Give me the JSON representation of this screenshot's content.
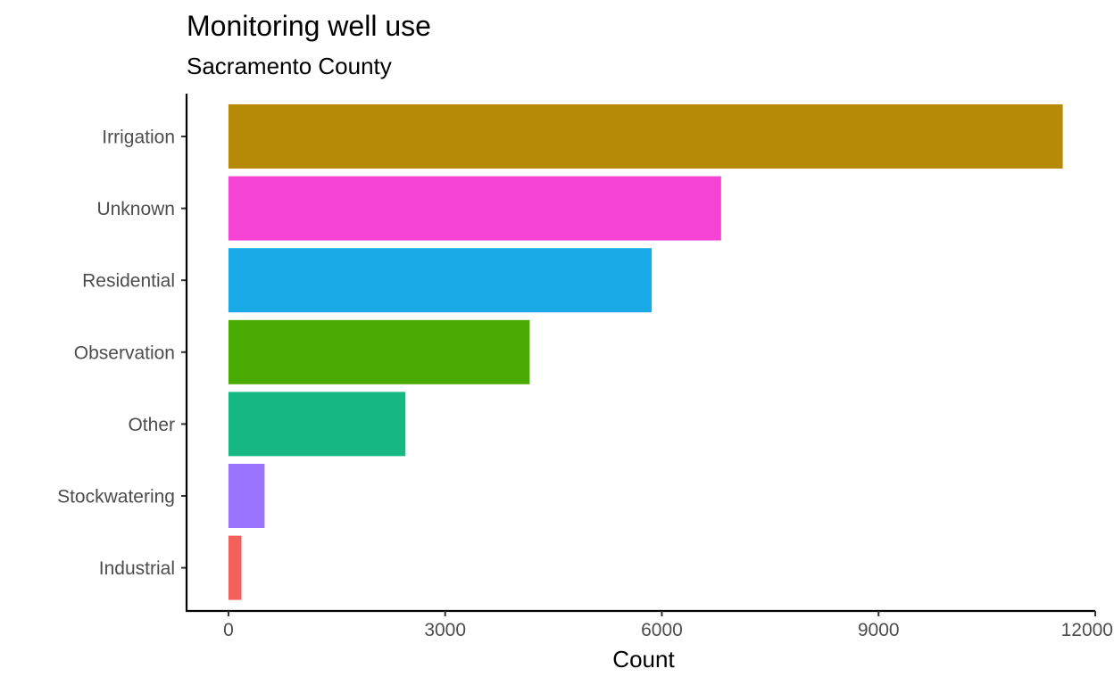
{
  "chart_data": {
    "type": "bar",
    "orientation": "horizontal",
    "title": "Monitoring well use",
    "subtitle": "Sacramento County",
    "xlabel": "Count",
    "ylabel": "",
    "categories": [
      "Irrigation",
      "Unknown",
      "Residential",
      "Observation",
      "Other",
      "Stockwatering",
      "Industrial"
    ],
    "values": [
      11550,
      6820,
      5860,
      4170,
      2450,
      500,
      180
    ],
    "colors": [
      "#B68A06",
      "#F543D3",
      "#19A9E7",
      "#49AA02",
      "#18B885",
      "#9A73FF",
      "#F2625B"
    ],
    "xlim": [
      -580,
      12000
    ],
    "xticks": [
      "0",
      "3000",
      "6000",
      "9000",
      "12000"
    ],
    "grid": false,
    "legend": "none"
  }
}
